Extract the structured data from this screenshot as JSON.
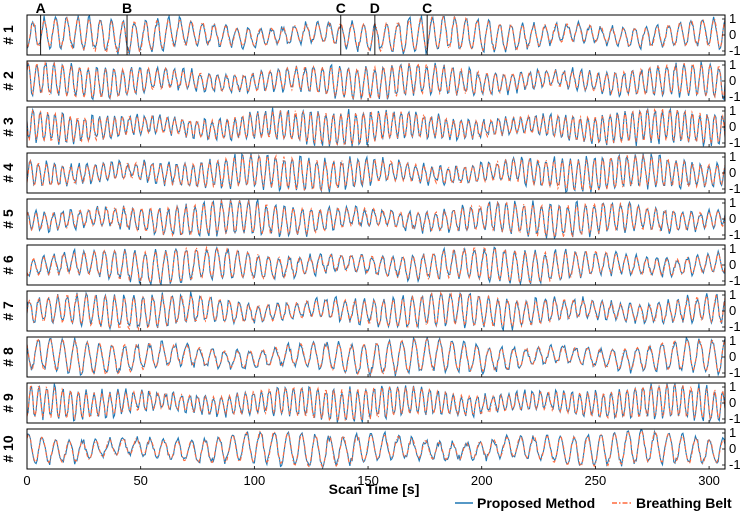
{
  "chart_data": {
    "type": "line",
    "xlabel": "Scan Time [s]",
    "xlim": [
      0,
      307
    ],
    "x_ticks": [
      0,
      50,
      100,
      150,
      200,
      250,
      300
    ],
    "ylim": [
      -1.25,
      1.25
    ],
    "y_ticks": [
      1,
      0,
      -1
    ],
    "grid": false,
    "legend": {
      "position": "bottom-right",
      "entries": [
        "Proposed Method",
        "Breathing Belt"
      ]
    },
    "series_styles": [
      {
        "name": "Proposed Method",
        "color": "#1f77b4",
        "dash": "solid"
      },
      {
        "name": "Breathing Belt",
        "color": "#ff6a3d",
        "dash": "dash-dot"
      }
    ],
    "event_markers": [
      {
        "label": "A",
        "time": 6
      },
      {
        "label": "B",
        "time": 44
      },
      {
        "label": "C",
        "time": 138
      },
      {
        "label": "D",
        "time": 153
      },
      {
        "label": "C",
        "time": 176
      }
    ],
    "panels": [
      {
        "label": "# 1",
        "breathing_period_s": 5.0
      },
      {
        "label": "# 2",
        "breathing_period_s": 3.8
      },
      {
        "label": "# 3",
        "breathing_period_s": 3.3
      },
      {
        "label": "# 4",
        "breathing_period_s": 3.6
      },
      {
        "label": "# 5",
        "breathing_period_s": 3.9
      },
      {
        "label": "# 6",
        "breathing_period_s": 4.5
      },
      {
        "label": "# 7",
        "breathing_period_s": 4.2
      },
      {
        "label": "# 8",
        "breathing_period_s": 5.5
      },
      {
        "label": "# 9",
        "breathing_period_s": 3.5
      },
      {
        "label": "# 10",
        "breathing_period_s": 6.0
      }
    ]
  }
}
